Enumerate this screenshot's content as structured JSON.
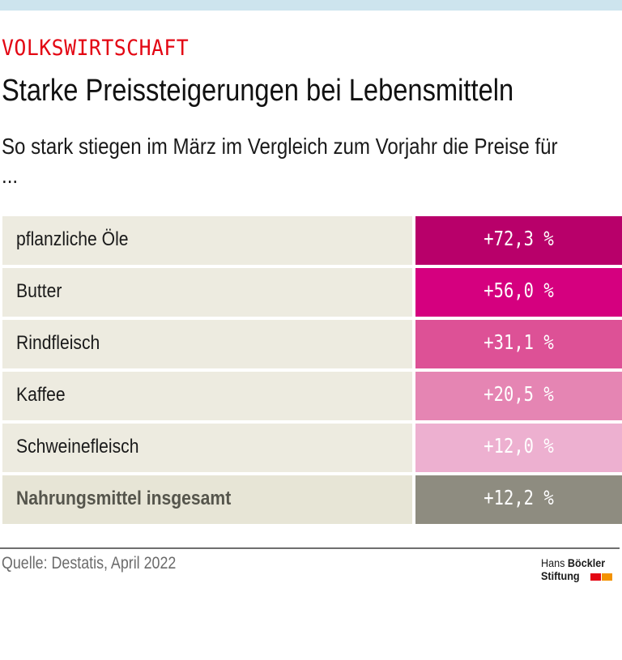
{
  "header": {
    "kicker": "VOLKSWIRTSCHAFT",
    "title": "Starke Preissteigerungen bei Lebensmitteln",
    "subtitle": "So stark stiegen im März im Vergleich zum Vorjahr die Preise für ..."
  },
  "chart_data": {
    "type": "table",
    "title": "Starke Preissteigerungen bei Lebensmitteln",
    "subtitle": "So stark stiegen im März im Vergleich zum Vorjahr die Preise für ...",
    "unit": "% change vs. previous year",
    "categories": [
      "pflanzliche Öle",
      "Butter",
      "Rindfleisch",
      "Kaffee",
      "Schweinefleisch",
      "Nahrungsmittel insgesamt"
    ],
    "values": [
      72.3,
      56.0,
      31.1,
      20.5,
      12.0,
      12.2
    ],
    "rows": [
      {
        "label": "pflanzliche Öle",
        "value": 72.3,
        "display": "+72,3 %",
        "color": "#b8006a"
      },
      {
        "label": "Butter",
        "value": 56.0,
        "display": "+56,0 %",
        "color": "#d5007f"
      },
      {
        "label": "Rindfleisch",
        "value": 31.1,
        "display": "+31,1 %",
        "color": "#dd5196"
      },
      {
        "label": "Kaffee",
        "value": 20.5,
        "display": "+20,5 %",
        "color": "#e585b3"
      },
      {
        "label": "Schweinefleisch",
        "value": 12.0,
        "display": "+12,0 %",
        "color": "#edb0d0"
      },
      {
        "label": "Nahrungsmittel insgesamt",
        "value": 12.2,
        "display": "+12,2 %",
        "color": "#8e8c80",
        "total": true
      }
    ]
  },
  "footer": {
    "source": "Quelle: Destatis, April 2022",
    "logo_line1_regular": "Hans ",
    "logo_line1_bold": "Böckler",
    "logo_line2": "Stiftung",
    "logo_colors": [
      "#e30613",
      "#f39200"
    ]
  }
}
